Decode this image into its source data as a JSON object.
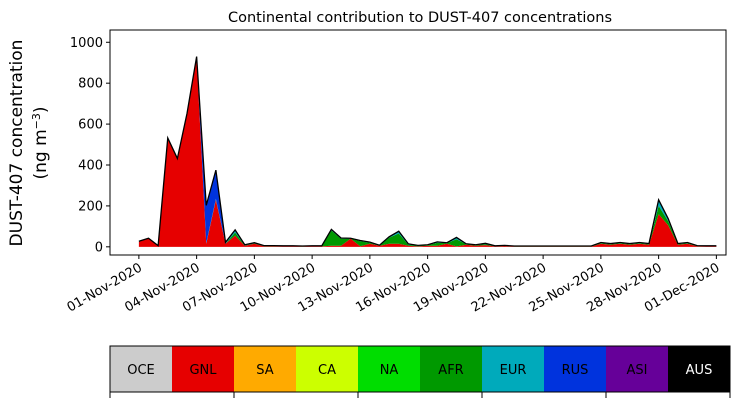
{
  "chart_data": {
    "type": "area",
    "title": "Continental contribution to DUST-407 concentrations",
    "ylabel_line1": "DUST-407 concentration",
    "ylabel_line2_prefix": "(ng m",
    "ylabel_line2_sup": "−3",
    "ylabel_line2_suffix": ")",
    "xlabel": "",
    "ylim": [
      -40,
      1060
    ],
    "yticks": [
      0,
      200,
      400,
      600,
      800,
      1000
    ],
    "xlim": [
      "2020-10-30T12:00",
      "2020-12-01T12:00"
    ],
    "xticks": [
      {
        "date": "2020-11-01",
        "label": "01-Nov-2020"
      },
      {
        "date": "2020-11-04",
        "label": "04-Nov-2020"
      },
      {
        "date": "2020-11-07",
        "label": "07-Nov-2020"
      },
      {
        "date": "2020-11-10",
        "label": "10-Nov-2020"
      },
      {
        "date": "2020-11-13",
        "label": "13-Nov-2020"
      },
      {
        "date": "2020-11-16",
        "label": "16-Nov-2020"
      },
      {
        "date": "2020-11-19",
        "label": "19-Nov-2020"
      },
      {
        "date": "2020-11-22",
        "label": "22-Nov-2020"
      },
      {
        "date": "2020-11-25",
        "label": "25-Nov-2020"
      },
      {
        "date": "2020-11-28",
        "label": "28-Nov-2020"
      },
      {
        "date": "2020-12-01",
        "label": "01-Dec-2020"
      }
    ],
    "x": [
      "2020-11-01T00:00",
      "2020-11-01T12:00",
      "2020-11-02T00:00",
      "2020-11-02T12:00",
      "2020-11-03T00:00",
      "2020-11-03T12:00",
      "2020-11-04T00:00",
      "2020-11-04T12:00",
      "2020-11-05T00:00",
      "2020-11-05T12:00",
      "2020-11-06T00:00",
      "2020-11-06T12:00",
      "2020-11-07T00:00",
      "2020-11-07T12:00",
      "2020-11-08T00:00",
      "2020-11-08T12:00",
      "2020-11-09T00:00",
      "2020-11-09T12:00",
      "2020-11-10T00:00",
      "2020-11-10T12:00",
      "2020-11-11T00:00",
      "2020-11-11T12:00",
      "2020-11-12T00:00",
      "2020-11-12T12:00",
      "2020-11-13T00:00",
      "2020-11-13T12:00",
      "2020-11-14T00:00",
      "2020-11-14T12:00",
      "2020-11-15T00:00",
      "2020-11-15T12:00",
      "2020-11-16T00:00",
      "2020-11-16T12:00",
      "2020-11-17T00:00",
      "2020-11-17T12:00",
      "2020-11-18T00:00",
      "2020-11-18T12:00",
      "2020-11-19T00:00",
      "2020-11-19T12:00",
      "2020-11-20T00:00",
      "2020-11-20T12:00",
      "2020-11-21T00:00",
      "2020-11-21T12:00",
      "2020-11-22T00:00",
      "2020-11-22T12:00",
      "2020-11-23T00:00",
      "2020-11-23T12:00",
      "2020-11-24T00:00",
      "2020-11-24T12:00",
      "2020-11-25T00:00",
      "2020-11-25T12:00",
      "2020-11-26T00:00",
      "2020-11-26T12:00",
      "2020-11-27T00:00",
      "2020-11-27T12:00",
      "2020-11-28T00:00",
      "2020-11-28T12:00",
      "2020-11-29T00:00",
      "2020-11-29T12:00",
      "2020-11-30T00:00",
      "2020-11-30T12:00",
      "2020-12-01T00:00"
    ],
    "series": [
      {
        "name": "OCE",
        "color": "#cccccc",
        "values": [
          0,
          0,
          0,
          0,
          0,
          0,
          0,
          0,
          0,
          0,
          0,
          0,
          0,
          0,
          0,
          0,
          0,
          0,
          0,
          0,
          0,
          0,
          0,
          0,
          0,
          0,
          0,
          0,
          0,
          0,
          0,
          0,
          0,
          0,
          0,
          0,
          0,
          0,
          0,
          0,
          0,
          0,
          0,
          0,
          0,
          0,
          0,
          0,
          0,
          0,
          0,
          0,
          0,
          0,
          0,
          0,
          0,
          0,
          0,
          0,
          0
        ]
      },
      {
        "name": "GNL",
        "color": "#e60000",
        "values": [
          25,
          40,
          5,
          530,
          430,
          650,
          920,
          15,
          230,
          15,
          55,
          5,
          15,
          3,
          3,
          2,
          2,
          1,
          2,
          2,
          5,
          5,
          40,
          3,
          15,
          5,
          15,
          15,
          5,
          2,
          5,
          5,
          15,
          2,
          10,
          5,
          8,
          2,
          4,
          1,
          1,
          1,
          1,
          1,
          1,
          1,
          1,
          1,
          15,
          10,
          15,
          10,
          15,
          10,
          160,
          105,
          10,
          15,
          3,
          2,
          2
        ]
      },
      {
        "name": "SA",
        "color": "#ffaa00",
        "values": [
          0,
          0,
          0,
          0,
          0,
          0,
          0,
          0,
          0,
          0,
          0,
          0,
          0,
          0,
          0,
          0,
          0,
          0,
          0,
          0,
          0,
          0,
          0,
          0,
          0,
          0,
          0,
          0,
          0,
          0,
          0,
          0,
          0,
          0,
          0,
          0,
          0,
          0,
          0,
          0,
          0,
          0,
          0,
          0,
          0,
          0,
          0,
          0,
          0,
          0,
          0,
          0,
          0,
          0,
          0,
          0,
          0,
          0,
          0,
          0,
          0
        ]
      },
      {
        "name": "CA",
        "color": "#ccff00",
        "values": [
          0,
          0,
          0,
          0,
          0,
          0,
          0,
          0,
          0,
          0,
          0,
          0,
          0,
          0,
          0,
          0,
          0,
          0,
          0,
          0,
          0,
          0,
          0,
          0,
          0,
          0,
          0,
          0,
          0,
          0,
          0,
          0,
          0,
          0,
          0,
          0,
          0,
          0,
          0,
          0,
          0,
          0,
          0,
          0,
          0,
          0,
          0,
          0,
          0,
          0,
          0,
          0,
          0,
          0,
          0,
          0,
          0,
          0,
          0,
          0,
          0
        ]
      },
      {
        "name": "NA",
        "color": "#00dd00",
        "values": [
          0,
          0,
          0,
          0,
          0,
          0,
          0,
          0,
          0,
          0,
          0,
          0,
          0,
          0,
          0,
          0,
          0,
          0,
          0,
          0,
          0,
          0,
          0,
          0,
          0,
          0,
          0,
          0,
          0,
          0,
          0,
          0,
          0,
          0,
          0,
          0,
          0,
          0,
          0,
          0,
          0,
          0,
          0,
          0,
          0,
          0,
          0,
          0,
          0,
          0,
          0,
          0,
          0,
          0,
          0,
          0,
          0,
          0,
          0,
          0,
          0
        ]
      },
      {
        "name": "AFR",
        "color": "#009900",
        "values": [
          0,
          0,
          0,
          0,
          0,
          0,
          0,
          0,
          0,
          0,
          15,
          2,
          2,
          1,
          1,
          1,
          1,
          1,
          1,
          1,
          75,
          35,
          0,
          25,
          5,
          1,
          30,
          50,
          5,
          3,
          3,
          15,
          3,
          35,
          3,
          3,
          5,
          1,
          1,
          1,
          1,
          1,
          1,
          1,
          1,
          1,
          1,
          1,
          3,
          3,
          3,
          3,
          3,
          3,
          40,
          20,
          3,
          3,
          1,
          1,
          1
        ]
      },
      {
        "name": "EUR",
        "color": "#00aabb",
        "values": [
          2,
          2,
          1,
          2,
          2,
          2,
          5,
          3,
          5,
          2,
          10,
          2,
          2,
          1,
          1,
          1,
          1,
          1,
          1,
          1,
          3,
          2,
          1,
          2,
          2,
          1,
          3,
          10,
          3,
          1,
          1,
          3,
          1,
          8,
          1,
          1,
          3,
          1,
          1,
          1,
          1,
          1,
          1,
          1,
          1,
          1,
          1,
          1,
          2,
          2,
          2,
          2,
          2,
          2,
          25,
          10,
          2,
          2,
          1,
          1,
          1
        ]
      },
      {
        "name": "RUS",
        "color": "#0033dd",
        "values": [
          0,
          0,
          0,
          0,
          0,
          0,
          5,
          185,
          140,
          5,
          3,
          1,
          1,
          1,
          1,
          1,
          1,
          1,
          1,
          1,
          2,
          1,
          1,
          1,
          1,
          1,
          1,
          1,
          1,
          1,
          1,
          1,
          1,
          1,
          1,
          1,
          1,
          1,
          1,
          1,
          1,
          1,
          1,
          1,
          1,
          1,
          1,
          1,
          1,
          1,
          1,
          1,
          1,
          1,
          5,
          2,
          1,
          1,
          1,
          1,
          1
        ]
      },
      {
        "name": "ASI",
        "color": "#660099",
        "values": [
          0,
          0,
          0,
          0,
          0,
          0,
          0,
          0,
          0,
          0,
          0,
          0,
          0,
          0,
          0,
          0,
          0,
          0,
          0,
          0,
          0,
          0,
          0,
          0,
          0,
          0,
          0,
          0,
          0,
          0,
          0,
          0,
          0,
          0,
          0,
          0,
          0,
          0,
          0,
          0,
          0,
          0,
          0,
          0,
          0,
          0,
          0,
          0,
          0,
          0,
          0,
          0,
          0,
          0,
          0,
          0,
          0,
          0,
          0,
          0,
          0
        ]
      },
      {
        "name": "AUS",
        "color": "#000000",
        "values": [
          0,
          0,
          0,
          0,
          0,
          0,
          0,
          0,
          0,
          0,
          0,
          0,
          0,
          0,
          0,
          0,
          0,
          0,
          0,
          0,
          0,
          0,
          0,
          0,
          0,
          0,
          0,
          0,
          0,
          0,
          0,
          0,
          0,
          0,
          0,
          0,
          0,
          0,
          0,
          0,
          0,
          0,
          0,
          0,
          0,
          0,
          0,
          0,
          0,
          0,
          0,
          0,
          0,
          0,
          0,
          0,
          0,
          0,
          0,
          0,
          0
        ]
      }
    ],
    "legend": {
      "placement": "bottom",
      "entries": [
        {
          "label": "OCE",
          "color": "#cccccc",
          "text_color": "#000000"
        },
        {
          "label": "GNL",
          "color": "#e60000",
          "text_color": "#000000"
        },
        {
          "label": "SA",
          "color": "#ffaa00",
          "text_color": "#000000"
        },
        {
          "label": "CA",
          "color": "#ccff00",
          "text_color": "#000000"
        },
        {
          "label": "NA",
          "color": "#00dd00",
          "text_color": "#000000"
        },
        {
          "label": "AFR",
          "color": "#009900",
          "text_color": "#000000"
        },
        {
          "label": "EUR",
          "color": "#00aabb",
          "text_color": "#000000"
        },
        {
          "label": "RUS",
          "color": "#0033dd",
          "text_color": "#000000"
        },
        {
          "label": "ASI",
          "color": "#660099",
          "text_color": "#000000"
        },
        {
          "label": "AUS",
          "color": "#000000",
          "text_color": "#ffffff"
        }
      ]
    },
    "grid": false
  }
}
